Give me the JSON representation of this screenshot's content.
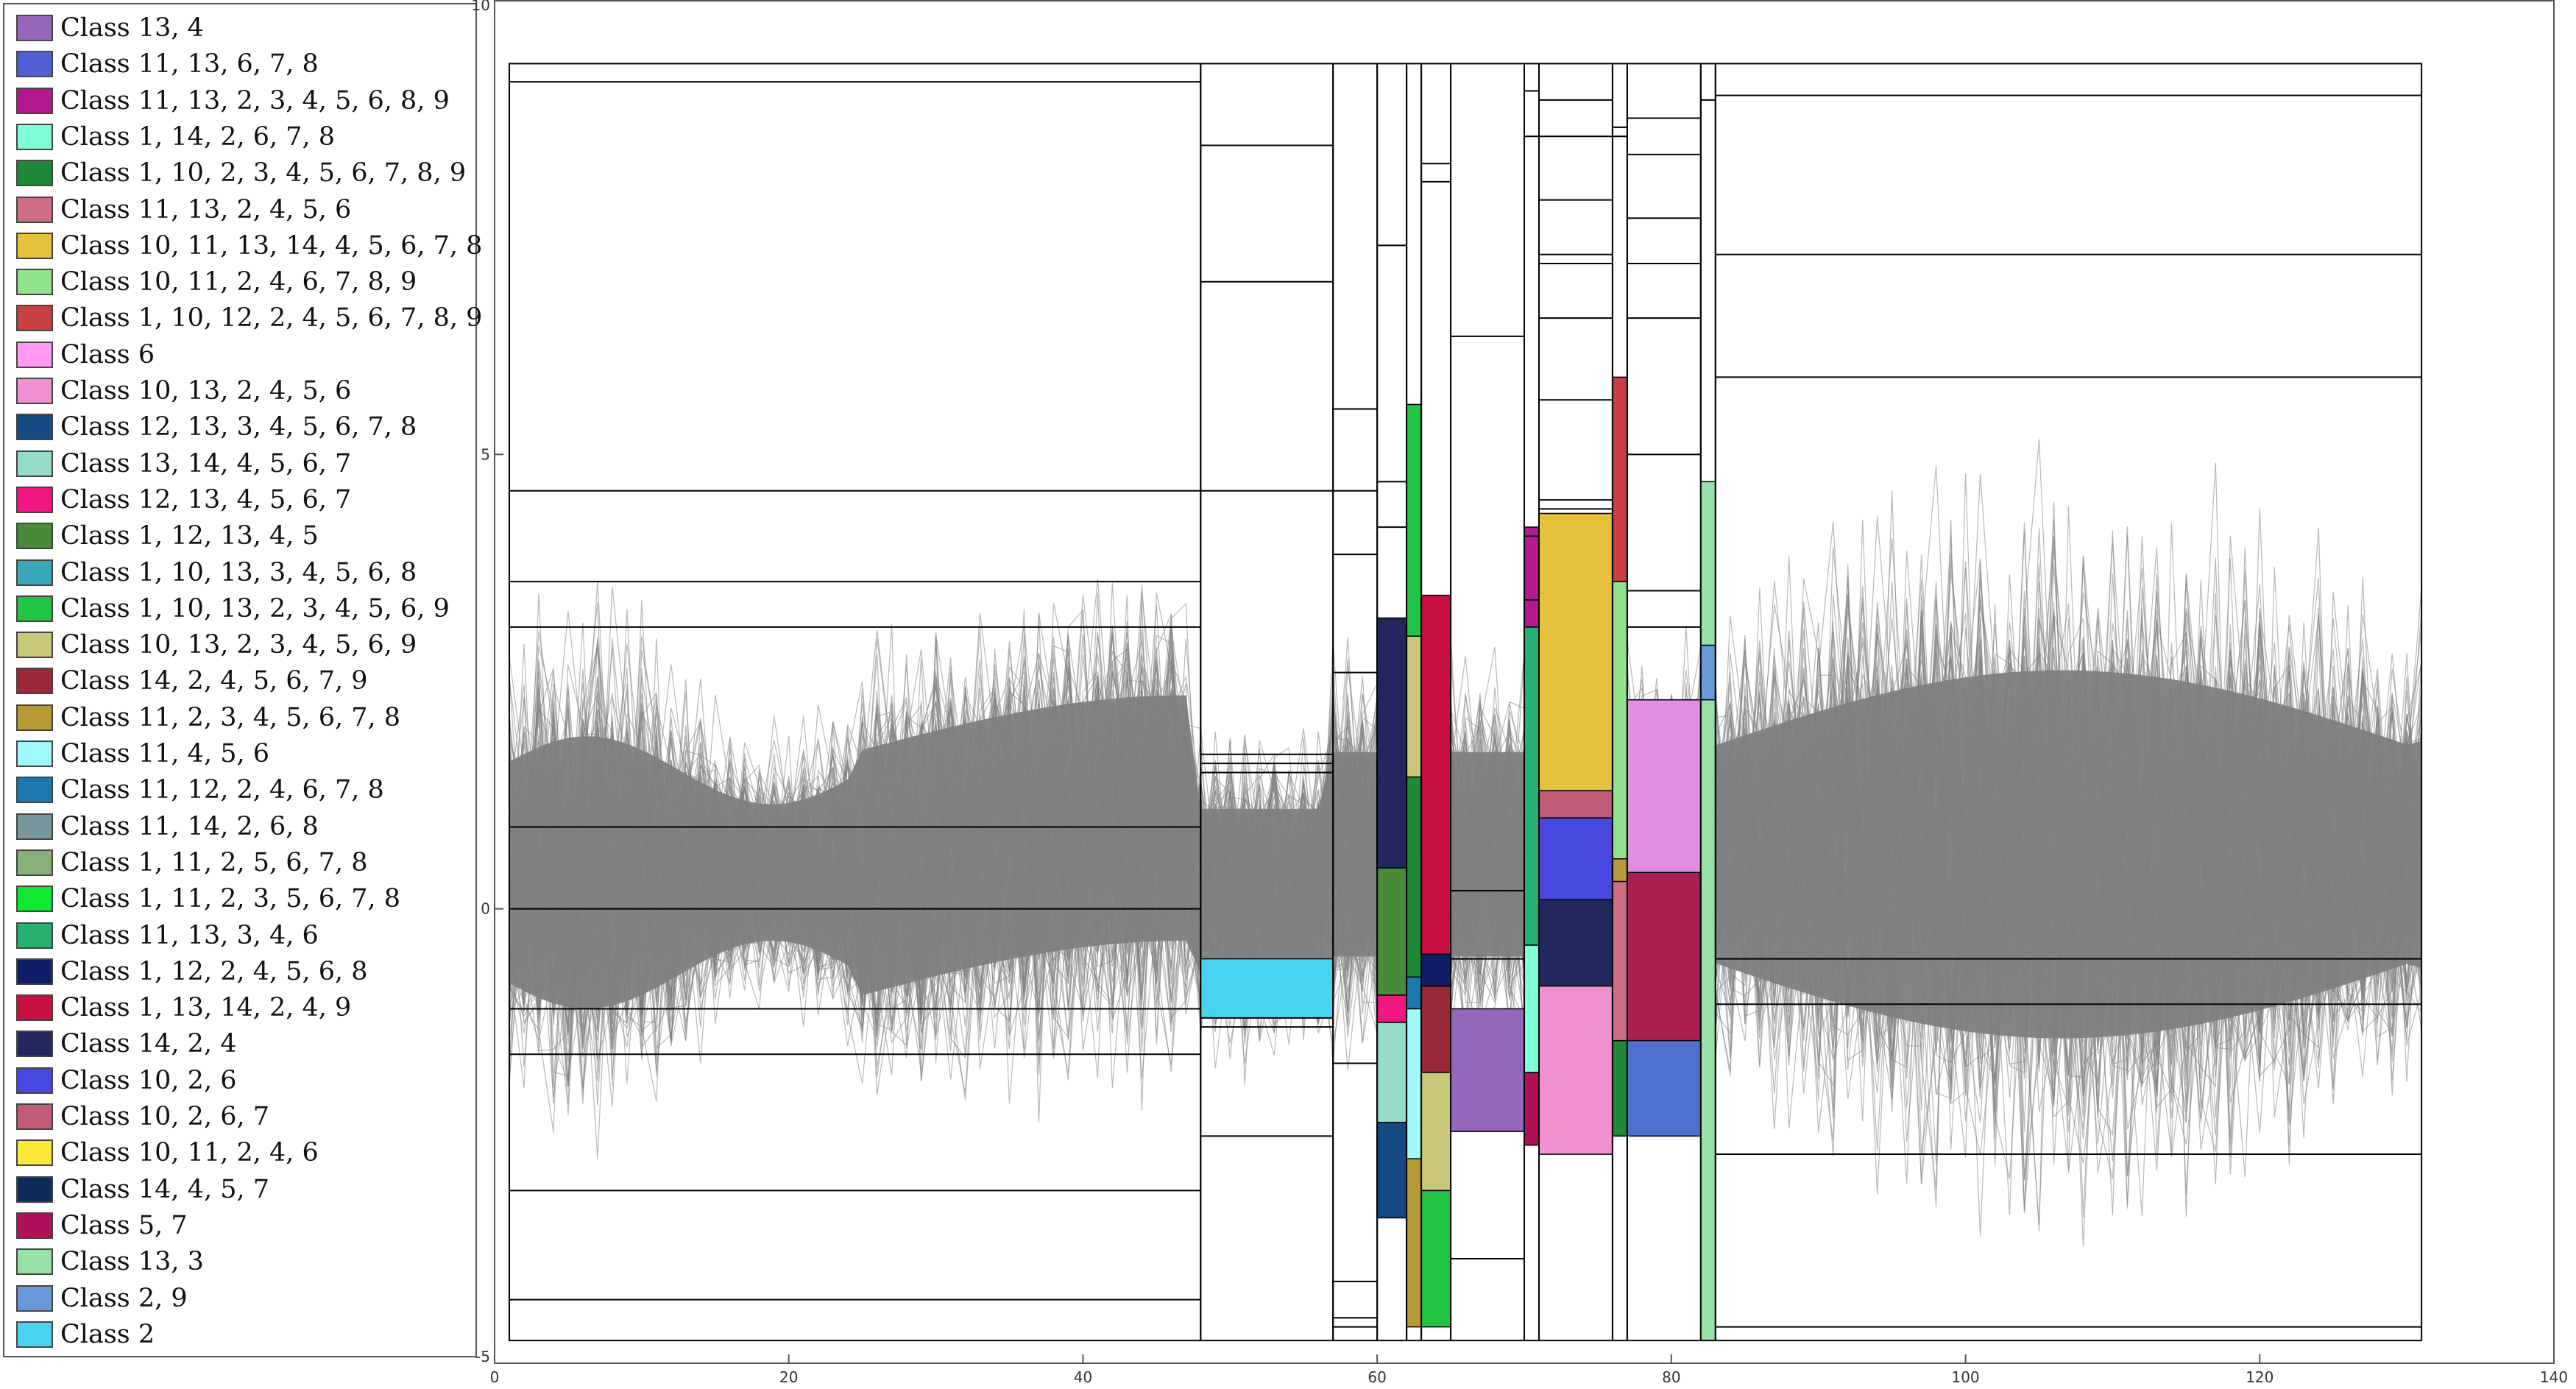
{
  "chart_data": {
    "type": "line",
    "title": "",
    "xlabel": "",
    "ylabel": "",
    "xlim": [
      0,
      140
    ],
    "ylim": [
      -5,
      10
    ],
    "xticks": [
      "0",
      "20",
      "40",
      "60",
      "80",
      "100",
      "120",
      "140"
    ],
    "yticks": [
      "-5",
      "0",
      "5",
      "10"
    ],
    "legend_placement": "left-outside",
    "series_color": "#808080",
    "legend": [
      {
        "label": "Class 13, 4",
        "color": "#9467bd"
      },
      {
        "label": "Class 11, 13, 6, 7, 8",
        "color": "#5060d0"
      },
      {
        "label": "Class 11, 13, 2, 3, 4, 5, 6, 8, 9",
        "color": "#b5198f"
      },
      {
        "label": "Class 1, 14, 2, 6, 7, 8",
        "color": "#7fffd8"
      },
      {
        "label": "Class 1, 10, 2, 3, 4, 5, 6, 7, 8, 9",
        "color": "#1e8a38"
      },
      {
        "label": "Class 11, 13, 2, 4, 5, 6",
        "color": "#d06e86"
      },
      {
        "label": "Class 10, 11, 13, 14, 4, 5, 6, 7, 8",
        "color": "#e4c23c"
      },
      {
        "label": "Class 10, 11, 2, 4, 6, 7, 8, 9",
        "color": "#90e28c"
      },
      {
        "label": "Class 1, 10, 12, 2, 4, 5, 6, 7, 8, 9",
        "color": "#c84040"
      },
      {
        "label": "Class 6",
        "color": "#ff99f2"
      },
      {
        "label": "Class 10, 13, 2, 4, 5, 6",
        "color": "#f090d0"
      },
      {
        "label": "Class 12, 13, 3, 4, 5, 6, 7, 8",
        "color": "#164a82"
      },
      {
        "label": "Class 13, 14, 4, 5, 6, 7",
        "color": "#96dcc8"
      },
      {
        "label": "Class 12, 13, 4, 5, 6, 7",
        "color": "#f01880"
      },
      {
        "label": "Class 1, 12, 13, 4, 5",
        "color": "#4a8a3a"
      },
      {
        "label": "Class 1, 10, 13, 3, 4, 5, 6, 8",
        "color": "#38a8b8"
      },
      {
        "label": "Class 1, 10, 13, 2, 3, 4, 5, 6, 9",
        "color": "#22c444"
      },
      {
        "label": "Class 10, 13, 2, 3, 4, 5, 6, 9",
        "color": "#c8c878"
      },
      {
        "label": "Class 14, 2, 4, 5, 6, 7, 9",
        "color": "#9a2838"
      },
      {
        "label": "Class 11, 2, 3, 4, 5, 6, 7, 8",
        "color": "#b89a38"
      },
      {
        "label": "Class 11, 4, 5, 6",
        "color": "#a0fafc"
      },
      {
        "label": "Class 11, 12, 2, 4, 6, 7, 8",
        "color": "#1e78b0"
      },
      {
        "label": "Class 11, 14, 2, 6, 8",
        "color": "#7898a0"
      },
      {
        "label": "Class 1, 11, 2, 5, 6, 7, 8",
        "color": "#88b078"
      },
      {
        "label": "Class 1, 11, 2, 3, 5, 6, 7, 8",
        "color": "#10e830"
      },
      {
        "label": "Class 11, 13, 3, 4, 6",
        "color": "#28b070"
      },
      {
        "label": "Class 1, 12, 2, 4, 5, 6, 8",
        "color": "#101e68"
      },
      {
        "label": "Class 1, 13, 14, 2, 4, 9",
        "color": "#c81040"
      },
      {
        "label": "Class 14, 2, 4",
        "color": "#22285e"
      },
      {
        "label": "Class 10, 2, 6",
        "color": "#4848e0"
      },
      {
        "label": "Class 10, 2, 6, 7",
        "color": "#c05c78"
      },
      {
        "label": "Class 10, 11, 2, 4, 6",
        "color": "#fce83a"
      },
      {
        "label": "Class 14, 4, 5, 7",
        "color": "#0e2a58"
      },
      {
        "label": "Class 5, 7",
        "color": "#b01058"
      },
      {
        "label": "Class 13, 3",
        "color": "#98e0a8"
      },
      {
        "label": "Class 2, 9",
        "color": "#6898d8"
      },
      {
        "label": "Class 2",
        "color": "#48d4f0"
      }
    ],
    "columns": [
      {
        "x": [
          1,
          48
        ],
        "cuts": [
          9.1,
          4.6,
          3.6,
          3.1,
          0.9,
          0,
          -1.1,
          -1.6,
          -3.1,
          -4.3
        ],
        "boxes": []
      },
      {
        "x": [
          48,
          57
        ],
        "cuts": [
          8.4,
          6.9,
          4.6,
          1.7,
          1.6,
          1.5,
          -1.2,
          -1.3,
          -2.5
        ],
        "boxes": [
          {
            "y": [
              -0.55,
              -1.2
            ],
            "color": "#48d4f0"
          }
        ]
      },
      {
        "x": [
          57,
          60
        ],
        "cuts": [
          5.5,
          4.6,
          3.9,
          2.6,
          -1.7,
          -4.1,
          -4.5,
          -4.6
        ],
        "boxes": []
      },
      {
        "x": [
          60,
          62
        ],
        "cuts": [
          7.3,
          4.7,
          4.2
        ],
        "boxes": [
          {
            "y": [
              3.2,
              0.45
            ],
            "color": "#22285e"
          },
          {
            "y": [
              0.45,
              -0.95
            ],
            "color": "#4a8a3a"
          },
          {
            "y": [
              -0.95,
              -1.25
            ],
            "color": "#f01880"
          },
          {
            "y": [
              -1.25,
              -2.35
            ],
            "color": "#96dcc8"
          },
          {
            "y": [
              -2.35,
              -3.4
            ],
            "color": "#164a82"
          }
        ]
      },
      {
        "x": [
          62,
          63
        ],
        "cuts": [],
        "boxes": [
          {
            "y": [
              5.55,
              3.0
            ],
            "color": "#22c444"
          },
          {
            "y": [
              3.0,
              1.45
            ],
            "color": "#c8c878"
          },
          {
            "y": [
              1.45,
              -0.75
            ],
            "color": "#1e8a38"
          },
          {
            "y": [
              -0.75,
              -1.1
            ],
            "color": "#1e78b0"
          },
          {
            "y": [
              -1.1,
              -2.75
            ],
            "color": "#a0fafc"
          },
          {
            "y": [
              -2.75,
              -4.6
            ],
            "color": "#b89a38"
          }
        ]
      },
      {
        "x": [
          63,
          65
        ],
        "cuts": [
          8.2,
          8.0
        ],
        "boxes": [
          {
            "y": [
              3.45,
              -0.5
            ],
            "color": "#c81040"
          },
          {
            "y": [
              -0.5,
              -0.85
            ],
            "color": "#101e68"
          },
          {
            "y": [
              -0.85,
              -1.8
            ],
            "color": "#9a2838"
          },
          {
            "y": [
              -1.8,
              -3.1
            ],
            "color": "#c8c878"
          },
          {
            "y": [
              -3.1,
              -4.6
            ],
            "color": "#22c444"
          }
        ]
      },
      {
        "x": [
          65,
          70
        ],
        "cuts": [
          6.3,
          0.2,
          -0.55,
          -3.85
        ],
        "boxes": [
          {
            "y": [
              -1.1,
              -2.45
            ],
            "color": "#9467bd"
          }
        ]
      },
      {
        "x": [
          70,
          71
        ],
        "cuts": [
          9.0,
          8.5,
          4.1,
          3.4
        ],
        "boxes": [
          {
            "y": [
              4.2,
              3.1
            ],
            "color": "#b5198f"
          },
          {
            "y": [
              3.1,
              -0.4
            ],
            "color": "#28b070"
          },
          {
            "y": [
              -0.4,
              -1.8
            ],
            "color": "#7fffd8"
          },
          {
            "y": [
              -1.8,
              -2.6
            ],
            "color": "#b01058"
          }
        ]
      },
      {
        "x": [
          71,
          76
        ],
        "cuts": [
          8.9,
          8.5,
          7.8,
          7.2,
          7.1,
          6.5,
          5.6,
          4.5,
          4.4
        ],
        "boxes": [
          {
            "y": [
              4.35,
              1.3
            ],
            "color": "#fce83a"
          },
          {
            "y": [
              4.35,
              1.3
            ],
            "color": "#e4c23c"
          },
          {
            "y": [
              1.3,
              1.0
            ],
            "color": "#c05c78"
          },
          {
            "y": [
              1.0,
              0.1
            ],
            "color": "#4848e0"
          },
          {
            "y": [
              0.1,
              -0.85
            ],
            "color": "#22285e"
          },
          {
            "y": [
              -0.85,
              -2.7
            ],
            "color": "#f090d0"
          }
        ]
      },
      {
        "x": [
          76,
          77
        ],
        "cuts": [
          8.6,
          8.5
        ],
        "boxes": [
          {
            "y": [
              5.85,
              3.6
            ],
            "color": "#c84040"
          },
          {
            "y": [
              3.6,
              0.55
            ],
            "color": "#90e28c"
          },
          {
            "y": [
              0.55,
              0.3
            ],
            "color": "#b89a38"
          },
          {
            "y": [
              0.3,
              -1.45
            ],
            "color": "#d06e86"
          },
          {
            "y": [
              -1.45,
              -2.5
            ],
            "color": "#1e8a38"
          }
        ]
      },
      {
        "x": [
          77,
          82
        ],
        "cuts": [
          8.7,
          8.3,
          7.6,
          7.1,
          6.5,
          5.0,
          3.5,
          3.1
        ],
        "boxes": [
          {
            "y": [
              2.3,
              0.4
            ],
            "color": "#e08ee0"
          },
          {
            "y": [
              0.4,
              -1.45
            ],
            "color": "#a82050"
          },
          {
            "y": [
              -1.45,
              -2.5
            ],
            "color": "#5070d0"
          }
        ]
      },
      {
        "x": [
          82,
          83
        ],
        "cuts": [
          8.9
        ],
        "boxes": [
          {
            "y": [
              4.7,
              2.9
            ],
            "color": "#98e0a8"
          },
          {
            "y": [
              2.9,
              2.3
            ],
            "color": "#6898d8"
          },
          {
            "y": [
              2.3,
              -4.75
            ],
            "color": "#98e0a8"
          }
        ]
      },
      {
        "x": [
          83,
          131
        ],
        "cuts": [
          8.95,
          7.2,
          5.85,
          -0.55,
          -1.05,
          -2.7,
          -4.6
        ],
        "boxes": []
      }
    ]
  }
}
